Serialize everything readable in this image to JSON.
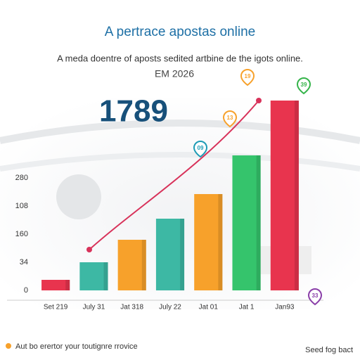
{
  "chart_data": {
    "type": "bar",
    "title": "A pertrace apostas online",
    "subtitle": "A meda doentre of aposts sedited artbine de the igots online.",
    "kicker": "EM 2026",
    "headline_value": 1789,
    "categories": [
      "Set 219",
      "July 31",
      "Jat 318",
      "July 22",
      "Jat 01",
      "Jat 1",
      "Jan93"
    ],
    "values": [
      15,
      40,
      72,
      102,
      137,
      192,
      270
    ],
    "colors": [
      "#e8344e",
      "#3db8a4",
      "#f7a12b",
      "#3db8a4",
      "#f7a12b",
      "#35c46c",
      "#e8344e"
    ],
    "ylim": [
      0,
      300
    ],
    "yticks": [
      0,
      {
        "value": 40,
        "label": "34"
      },
      {
        "value": 80,
        "label": "160"
      },
      {
        "value": 120,
        "label": "108"
      },
      {
        "value": 160,
        "label": "280"
      }
    ],
    "annotations": [
      {
        "text": "19",
        "color": "#f7a12b"
      },
      {
        "text": "39",
        "color": "#35b44a"
      },
      {
        "text": "13",
        "color": "#f7a12b"
      },
      {
        "text": "09",
        "color": "#1d9bb5"
      },
      {
        "text": "33",
        "color": "#8a3ea8"
      }
    ],
    "footer_note": "Aut bo erertor your toutignre rrovice",
    "footer_right": "Seed fog bact"
  }
}
